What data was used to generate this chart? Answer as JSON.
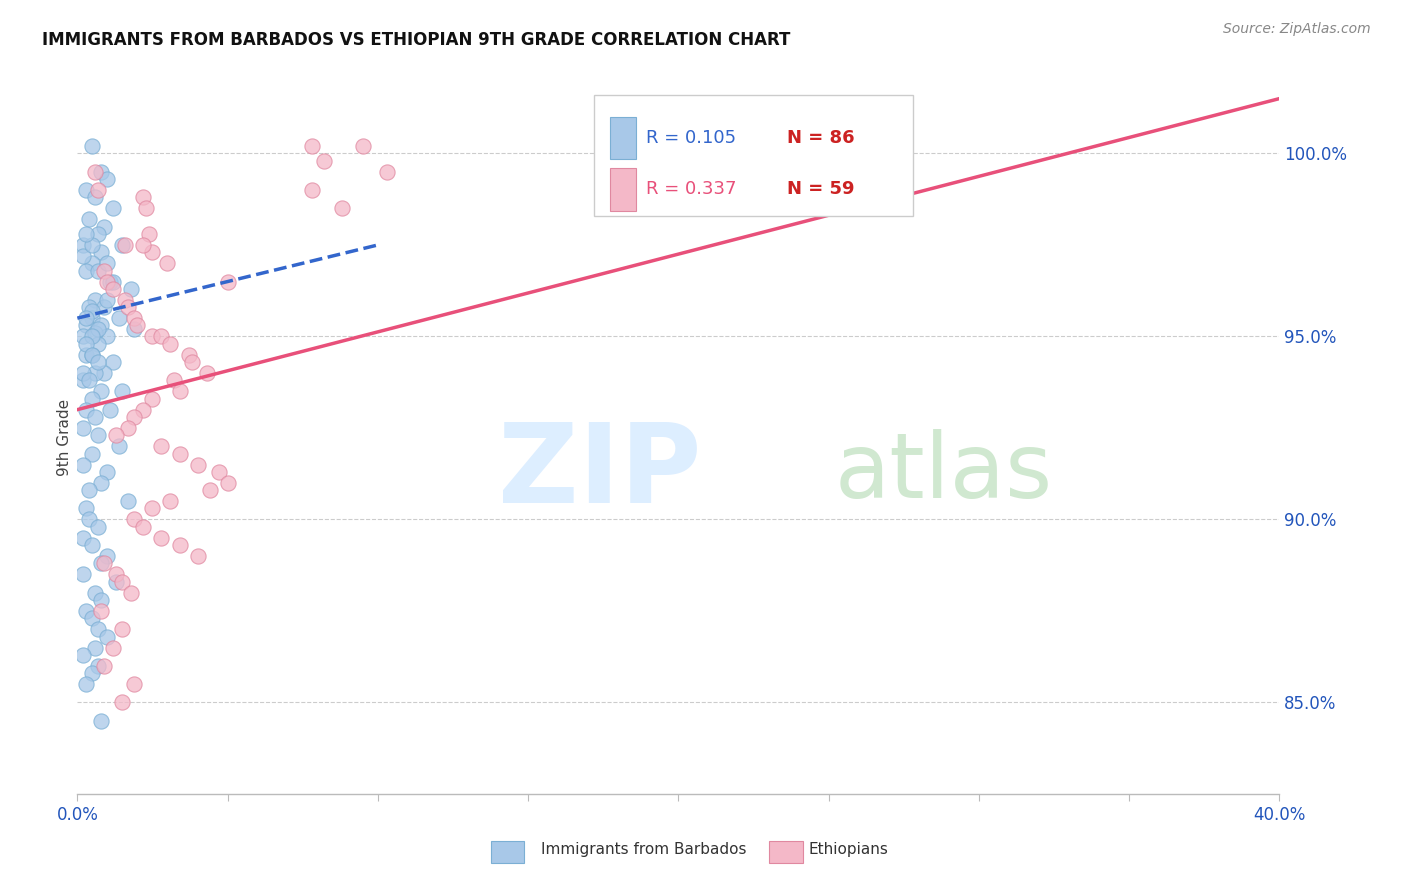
{
  "title": "IMMIGRANTS FROM BARBADOS VS ETHIOPIAN 9TH GRADE CORRELATION CHART",
  "source": "Source: ZipAtlas.com",
  "ylabel": "9th Grade",
  "right_ytick_labels": [
    "85.0%",
    "90.0%",
    "95.0%",
    "100.0%"
  ],
  "right_yticks": [
    85.0,
    90.0,
    95.0,
    100.0
  ],
  "legend_r1": "0.105",
  "legend_n1": "86",
  "legend_r2": "0.337",
  "legend_n2": "59",
  "blue_color": "#a8c8e8",
  "blue_edge_color": "#7bafd4",
  "pink_color": "#f4b8c8",
  "pink_edge_color": "#e088a0",
  "blue_line_color": "#3366cc",
  "pink_line_color": "#e8507a",
  "watermark_zip_color": "#ddeeff",
  "watermark_atlas_color": "#d0e8d0",
  "scatter_blue_x": [
    0.5,
    0.8,
    1.0,
    0.3,
    0.6,
    1.2,
    0.4,
    0.9,
    0.7,
    0.2,
    1.5,
    0.8,
    0.5,
    0.3,
    1.1,
    1.8,
    0.6,
    0.9,
    0.4,
    1.4,
    0.5,
    0.3,
    0.8,
    1.0,
    0.2,
    0.6,
    1.9,
    0.7,
    0.3,
    0.5,
    1.2,
    0.9,
    0.6,
    0.2,
    1.5,
    0.8,
    0.5,
    0.3,
    1.1,
    0.6,
    0.2,
    0.7,
    1.4,
    0.5,
    0.2,
    1.0,
    0.8,
    0.4,
    1.7,
    0.3,
    0.4,
    0.7,
    0.2,
    0.5,
    1.0,
    0.8,
    0.2,
    1.3,
    0.6,
    0.8,
    0.3,
    0.5,
    0.7,
    1.0,
    0.6,
    0.2,
    0.7,
    0.5,
    0.3,
    1.0,
    0.5,
    0.3,
    0.7,
    0.5,
    1.2,
    0.3,
    0.5,
    0.7,
    0.2,
    0.4,
    0.7,
    1.0,
    0.2,
    0.5,
    0.3,
    0.8
  ],
  "scatter_blue_y": [
    100.2,
    99.5,
    99.3,
    99.0,
    98.8,
    98.5,
    98.2,
    98.0,
    97.8,
    97.5,
    97.5,
    97.3,
    97.0,
    96.8,
    96.5,
    96.3,
    96.0,
    95.8,
    95.8,
    95.5,
    95.5,
    95.3,
    95.3,
    95.0,
    95.0,
    95.1,
    95.2,
    94.8,
    94.5,
    94.5,
    94.3,
    94.0,
    94.0,
    93.8,
    93.5,
    93.5,
    93.3,
    93.0,
    93.0,
    92.8,
    92.5,
    92.3,
    92.0,
    91.8,
    91.5,
    91.3,
    91.0,
    90.8,
    90.5,
    90.3,
    90.0,
    89.8,
    89.5,
    89.3,
    89.0,
    88.8,
    88.5,
    88.3,
    88.0,
    87.8,
    87.5,
    87.3,
    87.0,
    86.8,
    86.5,
    86.3,
    86.0,
    85.8,
    85.5,
    96.0,
    95.7,
    95.5,
    95.2,
    95.0,
    96.5,
    94.8,
    94.5,
    94.3,
    94.0,
    93.8,
    96.8,
    97.0,
    97.2,
    97.5,
    97.8,
    84.5
  ],
  "scatter_pink_x": [
    0.6,
    0.7,
    2.2,
    2.3,
    1.6,
    2.5,
    3.0,
    0.9,
    1.0,
    1.2,
    1.6,
    1.7,
    1.9,
    2.0,
    2.5,
    2.8,
    3.1,
    3.7,
    3.8,
    4.3,
    3.2,
    3.4,
    2.5,
    2.2,
    1.9,
    1.7,
    1.3,
    2.8,
    3.4,
    4.0,
    4.7,
    5.0,
    4.4,
    3.1,
    2.5,
    1.9,
    2.2,
    2.8,
    3.4,
    4.0,
    0.9,
    1.3,
    1.5,
    1.8,
    0.8,
    1.5,
    1.2,
    0.9,
    5.0,
    7.8,
    8.2,
    9.5,
    10.3,
    7.8,
    8.8,
    2.4,
    2.2,
    1.9,
    1.5
  ],
  "scatter_pink_y": [
    99.5,
    99.0,
    98.8,
    98.5,
    97.5,
    97.3,
    97.0,
    96.8,
    96.5,
    96.3,
    96.0,
    95.8,
    95.5,
    95.3,
    95.0,
    95.0,
    94.8,
    94.5,
    94.3,
    94.0,
    93.8,
    93.5,
    93.3,
    93.0,
    92.8,
    92.5,
    92.3,
    92.0,
    91.8,
    91.5,
    91.3,
    91.0,
    90.8,
    90.5,
    90.3,
    90.0,
    89.8,
    89.5,
    89.3,
    89.0,
    88.8,
    88.5,
    88.3,
    88.0,
    87.5,
    87.0,
    86.5,
    86.0,
    96.5,
    100.2,
    99.8,
    100.2,
    99.5,
    99.0,
    98.5,
    97.8,
    97.5,
    85.5,
    85.0
  ],
  "blue_trend_x": [
    0.0,
    10.0
  ],
  "blue_trend_y": [
    95.5,
    97.5
  ],
  "pink_trend_x": [
    0.0,
    40.0
  ],
  "pink_trend_y": [
    93.0,
    101.5
  ],
  "xmin": 0.0,
  "xmax": 40.0,
  "ymin": 82.5,
  "ymax": 102.0
}
